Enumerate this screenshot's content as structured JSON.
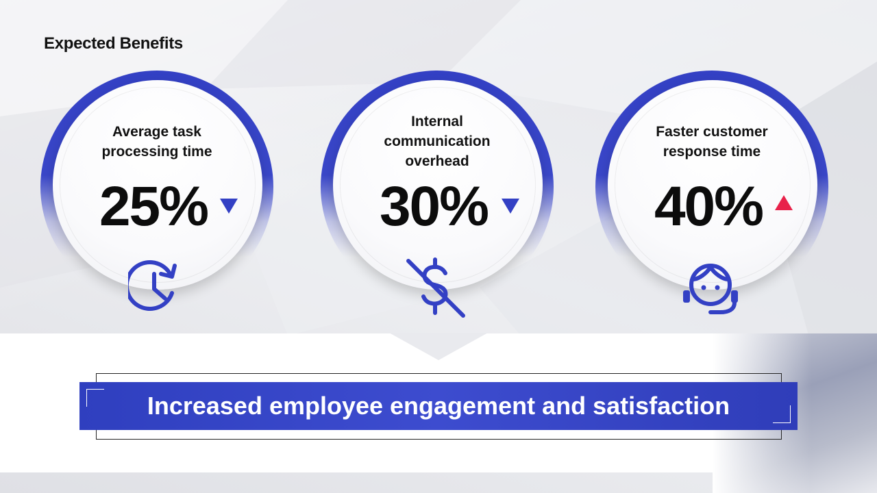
{
  "page": {
    "title": "Expected Benefits"
  },
  "cards": [
    {
      "label_lines": [
        "Average task",
        "processing time"
      ],
      "value": "25%",
      "trend": "down",
      "icon": "clock-refresh-icon"
    },
    {
      "label_lines": [
        "Internal",
        "communication",
        "overhead"
      ],
      "value": "30%",
      "trend": "down",
      "icon": "no-dollar-icon"
    },
    {
      "label_lines": [
        "Faster customer",
        "response time"
      ],
      "value": "40%",
      "trend": "up",
      "icon": "headset-agent-icon"
    }
  ],
  "banner": {
    "text": "Increased employee engagement and satisfaction"
  },
  "colors": {
    "accent": "#3340c4",
    "down_arrow": "#3340c4",
    "up_arrow": "#e8224a",
    "text": "#111111"
  }
}
